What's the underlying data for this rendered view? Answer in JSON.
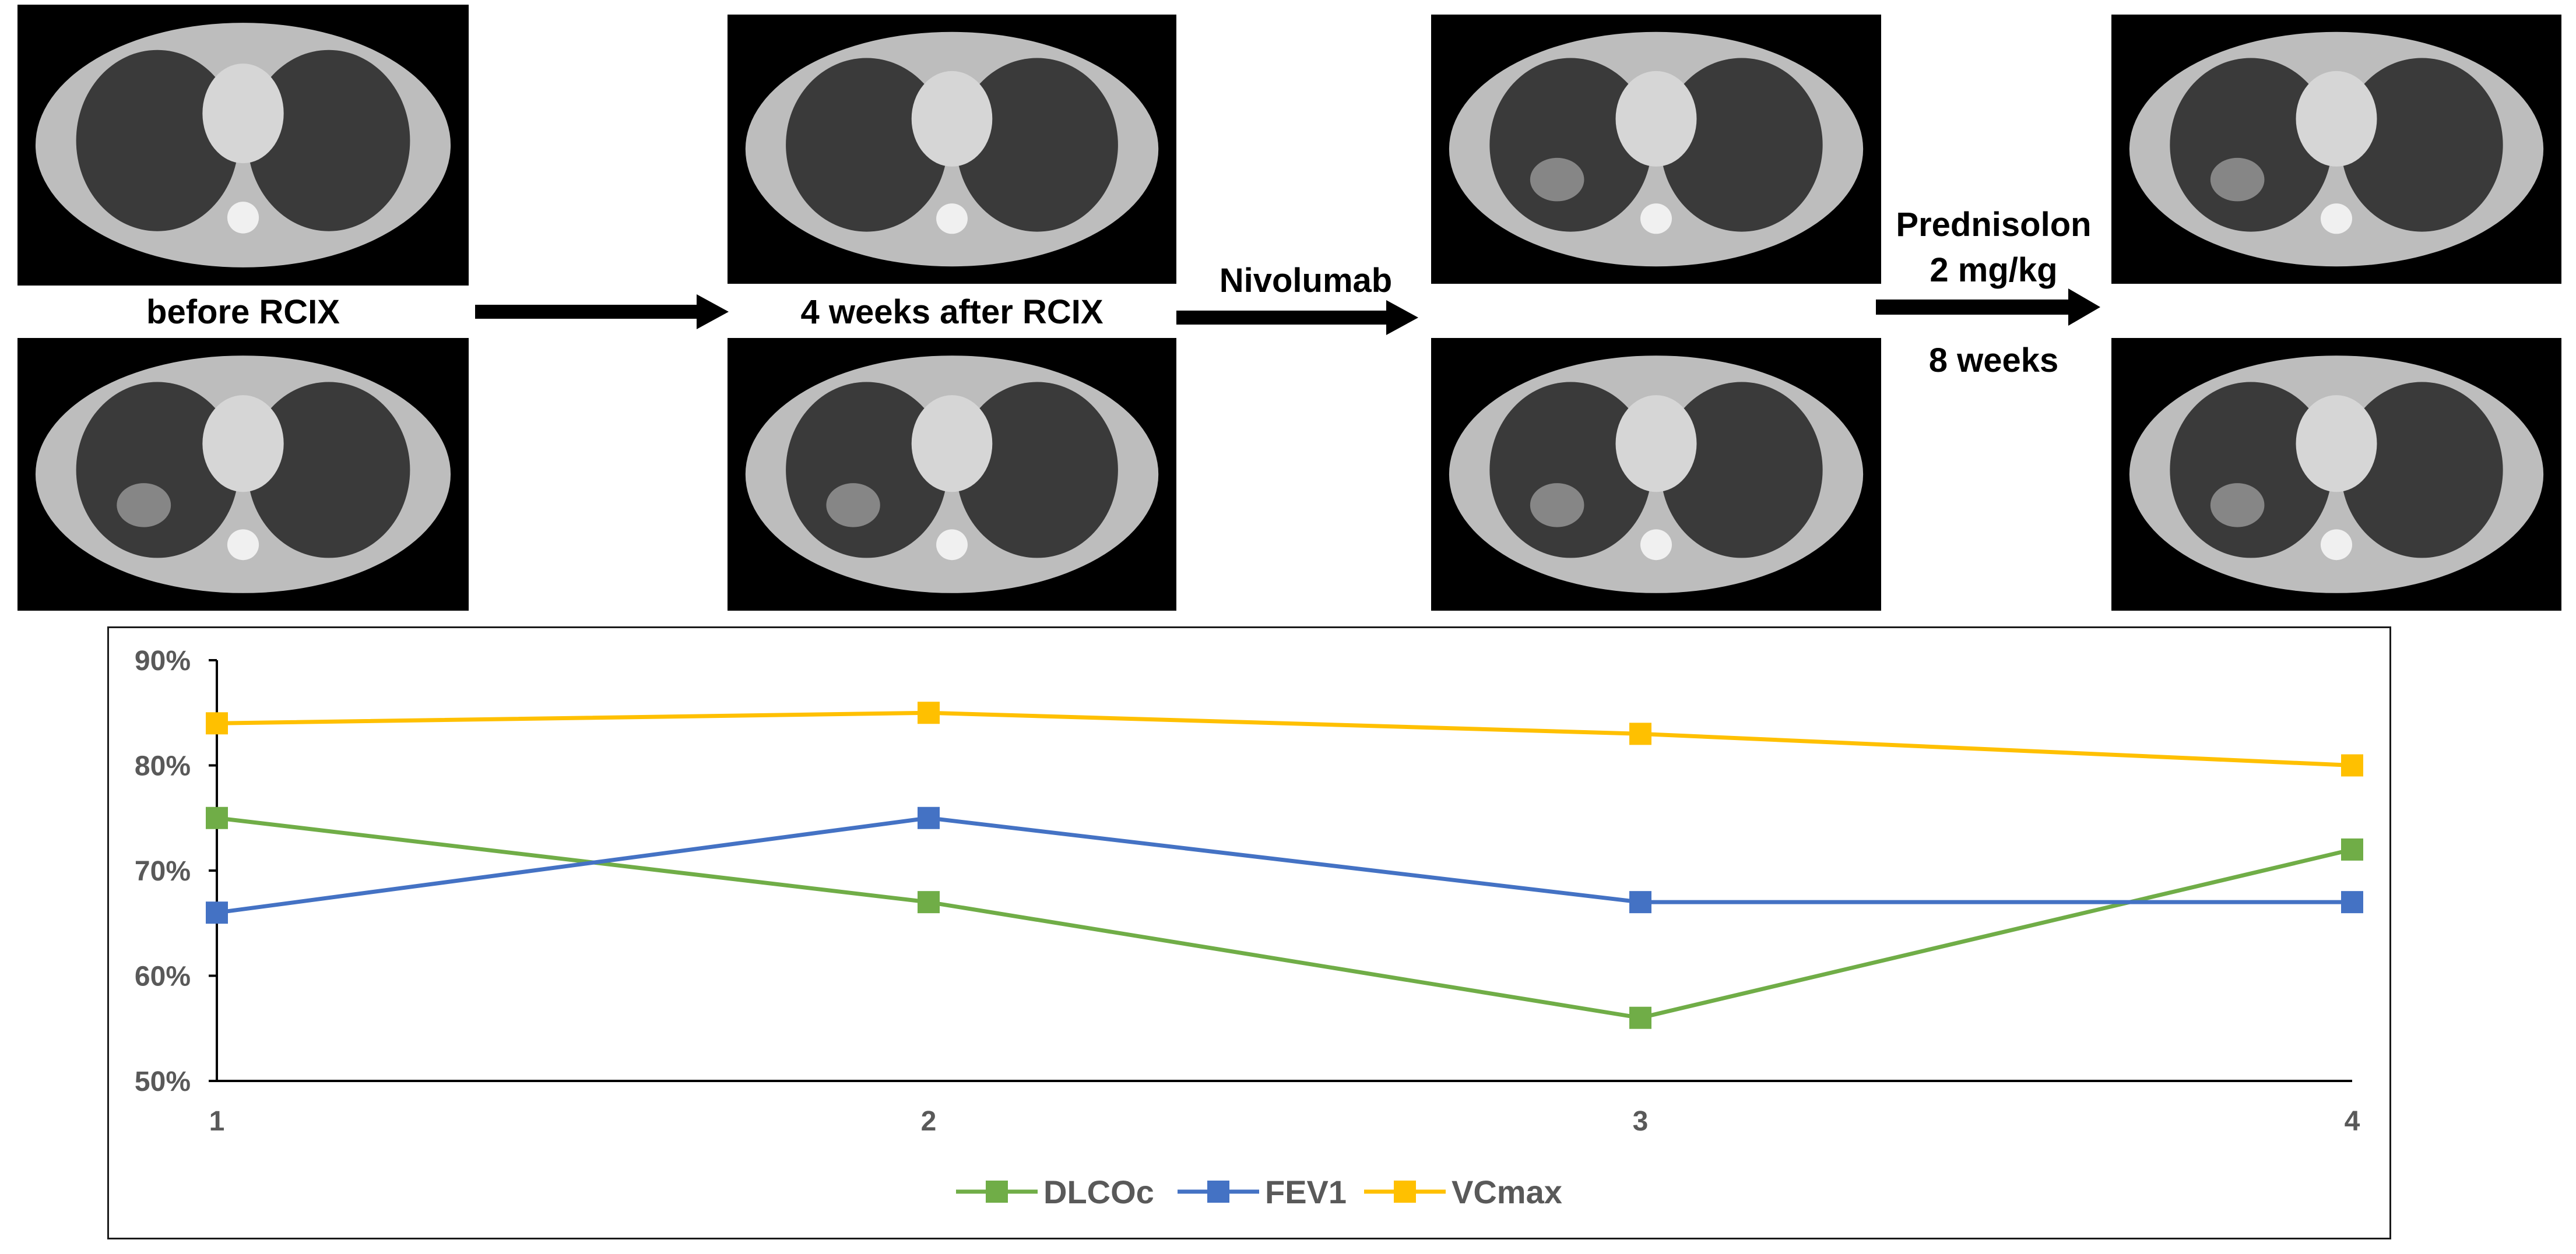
{
  "labels": {
    "before": "before RCIX",
    "after": "4 weeks after RCIX",
    "drug": "Nivolumab",
    "steroid_line1": "Prednisolon",
    "steroid_line2": "2 mg/kg",
    "duration": "8 weeks"
  },
  "colors": {
    "ct_background": "#000000",
    "ct_body": "#bdbdbd",
    "ct_lung": "#3a3a3a"
  },
  "chart_data": {
    "type": "line",
    "title": "",
    "xlabel": "",
    "ylabel": "",
    "x": [
      1,
      2,
      3,
      4
    ],
    "ylim": [
      0.5,
      0.9
    ],
    "yticks": [
      "50%",
      "60%",
      "70%",
      "80%",
      "90%"
    ],
    "xticks": [
      "1",
      "2",
      "3",
      "4"
    ],
    "grid": false,
    "legend_position": "bottom",
    "series": [
      {
        "name": "DLCOc",
        "color": "#70ad47",
        "values": [
          0.75,
          0.67,
          0.56,
          0.72
        ]
      },
      {
        "name": "FEV1",
        "color": "#4472c4",
        "values": [
          0.66,
          0.75,
          0.67,
          0.67
        ]
      },
      {
        "name": "VCmax",
        "color": "#ffc000",
        "values": [
          0.84,
          0.85,
          0.83,
          0.8
        ]
      }
    ]
  }
}
